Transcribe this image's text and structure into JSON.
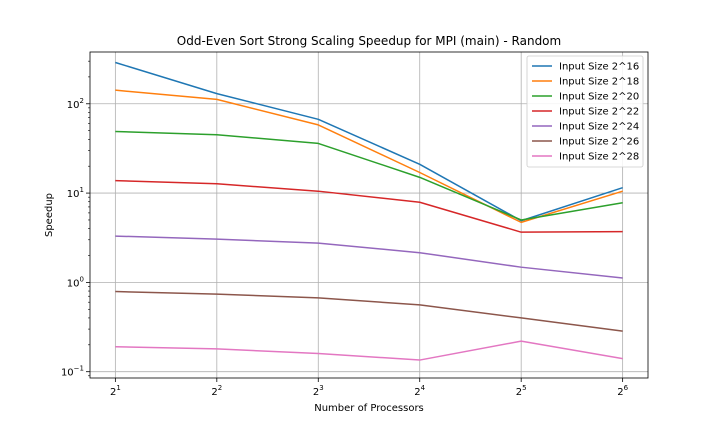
{
  "chart_data": {
    "type": "line",
    "title": "Odd-Even Sort Strong Scaling Speedup for MPI (main) - Random",
    "xlabel": "Number of Processors",
    "ylabel": "Speedup",
    "x_scale": "log2",
    "y_scale": "log10",
    "x": [
      2,
      4,
      8,
      16,
      32,
      64
    ],
    "x_tick_labels": [
      {
        "base": "2",
        "exp": "1"
      },
      {
        "base": "2",
        "exp": "2"
      },
      {
        "base": "2",
        "exp": "3"
      },
      {
        "base": "2",
        "exp": "4"
      },
      {
        "base": "2",
        "exp": "5"
      },
      {
        "base": "2",
        "exp": "6"
      }
    ],
    "y_ticks": [
      0.1,
      1,
      10,
      100
    ],
    "y_tick_labels": [
      {
        "base": "10",
        "exp": "−1"
      },
      {
        "base": "10",
        "exp": "0"
      },
      {
        "base": "10",
        "exp": "1"
      },
      {
        "base": "10",
        "exp": "2"
      }
    ],
    "ylim": [
      0.085,
      380
    ],
    "grid": true,
    "legend_position": "top-right",
    "series": [
      {
        "name": "Input Size 2^16",
        "color": "#1f77b4",
        "values": [
          290,
          130,
          67,
          21,
          4.9,
          11.5
        ]
      },
      {
        "name": "Input Size 2^18",
        "color": "#ff7f0e",
        "values": [
          142,
          112,
          58,
          17,
          4.7,
          10.5
        ]
      },
      {
        "name": "Input Size 2^20",
        "color": "#2ca02c",
        "values": [
          49,
          45,
          36,
          15,
          5.0,
          7.8
        ]
      },
      {
        "name": "Input Size 2^22",
        "color": "#d62728",
        "values": [
          13.8,
          12.7,
          10.5,
          7.9,
          3.65,
          3.7
        ]
      },
      {
        "name": "Input Size 2^24",
        "color": "#9467bd",
        "values": [
          3.3,
          3.05,
          2.75,
          2.15,
          1.48,
          1.12
        ]
      },
      {
        "name": "Input Size 2^26",
        "color": "#8c564b",
        "values": [
          0.79,
          0.74,
          0.67,
          0.56,
          0.4,
          0.285
        ]
      },
      {
        "name": "Input Size 2^28",
        "color": "#e377c2",
        "values": [
          0.19,
          0.18,
          0.16,
          0.135,
          0.22,
          0.14
        ]
      }
    ]
  }
}
